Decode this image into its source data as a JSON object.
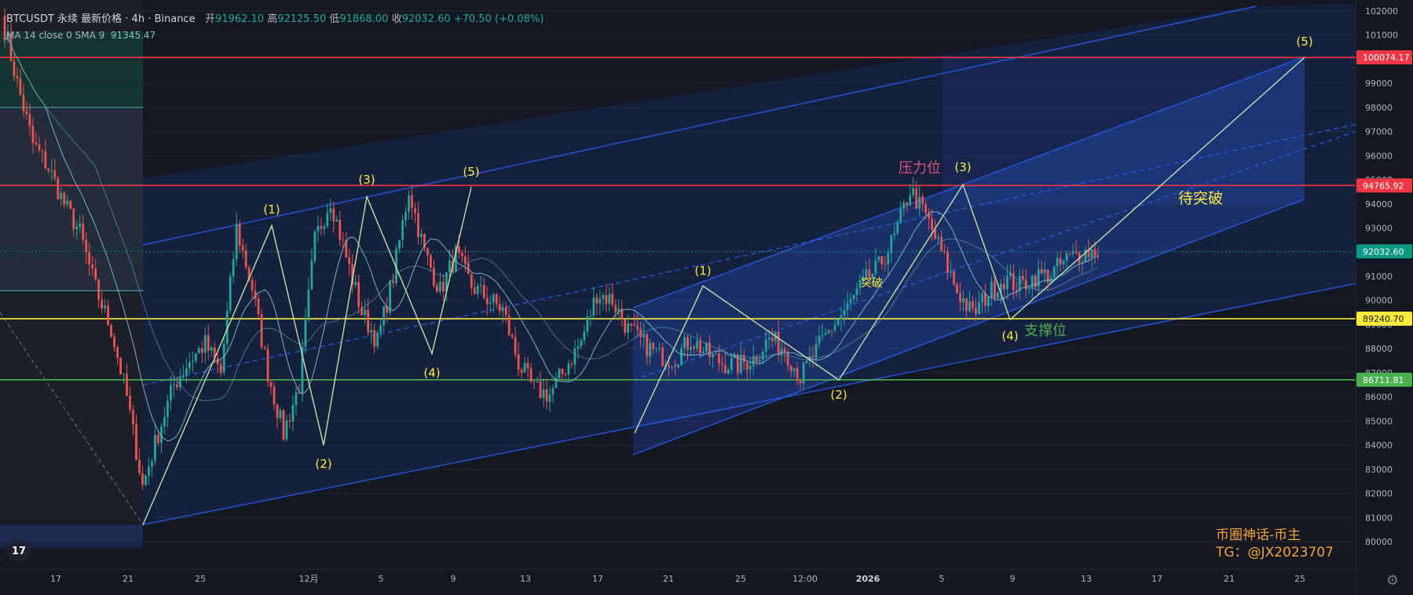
{
  "header": {
    "symbol": "BTCUSDT 永续 最新价格 · 4h · Binance",
    "open_label": "开",
    "open": "91962.10",
    "high_label": "高",
    "high": "92125.50",
    "low_label": "低",
    "low": "91868.00",
    "close_label": "收",
    "close": "92032.60",
    "change": "+70.50 (+0.08%)"
  },
  "indicator": {
    "label": "MA 14 close 0 SMA 9",
    "value": "91345.47"
  },
  "brand": {
    "line1": "币圈神话-币主",
    "line2": "TG：@JX2023707"
  },
  "tv_logo": "17",
  "colors": {
    "up": "#26a69a",
    "down": "#ef5350",
    "resistance": "#f23645",
    "support_yellow": "#ffeb3b",
    "support_green": "#4caf50",
    "channel": "#2962ff",
    "wave": "#c5e1a5",
    "ma": "#7cb6c8"
  },
  "chart_data": {
    "type": "candlestick",
    "timeframe": "4h",
    "ylim": [
      79200,
      102300
    ],
    "y_ticks": [
      80000,
      81000,
      82000,
      83000,
      84000,
      85000,
      86000,
      87000,
      88000,
      89000,
      90000,
      91000,
      92000,
      93000,
      94000,
      95000,
      96000,
      97000,
      98000,
      99000,
      100000,
      101000,
      102000
    ],
    "x_ticks": [
      "17",
      "21",
      "25",
      "12月",
      "5",
      "9",
      "13",
      "17",
      "21",
      "25",
      "12:00",
      "2026",
      "5",
      "9",
      "13",
      "17",
      "21",
      "25"
    ],
    "price_levels": [
      {
        "value": 100074.17,
        "label": "100074.17",
        "color": "#f23645"
      },
      {
        "value": 94765.92,
        "label": "94765.92",
        "color": "#f23645"
      },
      {
        "value": 92032.6,
        "label": "92032.60",
        "color": "#089981"
      },
      {
        "value": 89240.7,
        "label": "89240.70",
        "color": "#ffeb3b"
      },
      {
        "value": 86711.81,
        "label": "86711.81",
        "color": "#4caf50"
      }
    ],
    "price_path": [
      [
        "17",
        101800
      ],
      [
        "17",
        99000
      ],
      [
        "17",
        96500
      ],
      [
        "17",
        95500
      ],
      [
        "17",
        94000
      ],
      [
        "21",
        92800
      ],
      [
        "21",
        90500
      ],
      [
        "21",
        88800
      ],
      [
        "21",
        86000
      ],
      [
        "21",
        82300
      ],
      [
        "25",
        84500
      ],
      [
        "25",
        86500
      ],
      [
        "25",
        87500
      ],
      [
        "25",
        88200
      ],
      [
        "25",
        87000
      ],
      [
        "12月",
        93000
      ],
      [
        "12月",
        90500
      ],
      [
        "12月",
        87000
      ],
      [
        "12月",
        84500
      ],
      [
        "12月",
        86500
      ],
      [
        "5",
        92500
      ],
      [
        "5",
        94200
      ],
      [
        "5",
        91800
      ],
      [
        "5",
        89500
      ],
      [
        "5",
        88300
      ],
      [
        "9",
        91000
      ],
      [
        "9",
        94600
      ],
      [
        "9",
        92000
      ],
      [
        "9",
        90400
      ],
      [
        "9",
        91900
      ],
      [
        "13",
        90600
      ],
      [
        "13",
        90100
      ],
      [
        "13",
        89600
      ],
      [
        "13",
        87400
      ],
      [
        "13",
        86300
      ],
      [
        "17",
        86100
      ],
      [
        "17",
        87200
      ],
      [
        "17",
        88300
      ],
      [
        "17",
        90300
      ],
      [
        "17",
        90000
      ],
      [
        "21",
        88800
      ],
      [
        "21",
        88200
      ],
      [
        "21",
        87700
      ],
      [
        "21",
        87600
      ],
      [
        "21",
        88400
      ],
      [
        "25",
        87800
      ],
      [
        "25",
        87400
      ],
      [
        "25",
        87300
      ],
      [
        "25",
        87600
      ],
      [
        "25",
        88400
      ],
      [
        "12:00",
        88000
      ],
      [
        "12:00",
        86800
      ],
      [
        "12:00",
        87900
      ],
      [
        "12:00",
        88900
      ],
      [
        "12:00",
        89700
      ],
      [
        "2026",
        90700
      ],
      [
        "2026",
        91400
      ],
      [
        "2026",
        92600
      ],
      [
        "2026",
        94600
      ],
      [
        "2026",
        93500
      ],
      [
        "5",
        92000
      ],
      [
        "5",
        90400
      ],
      [
        "5",
        89400
      ],
      [
        "5",
        90300
      ],
      [
        "5",
        90900
      ],
      [
        "9",
        90600
      ],
      [
        "9",
        91000
      ],
      [
        "9",
        91100
      ],
      [
        "9",
        91700
      ],
      [
        "9",
        92000
      ],
      [
        "13",
        92100
      ]
    ],
    "elliott_waves": [
      {
        "label": "(1)",
        "price": 93100
      },
      {
        "label": "(2)",
        "price": 84000
      },
      {
        "label": "(3)",
        "price": 94300
      },
      {
        "label": "(4)",
        "price": 87800
      },
      {
        "label": "(5)",
        "price": 94700
      },
      {
        "label": "(1)",
        "price": 90600
      },
      {
        "label": "(2)",
        "price": 86700
      },
      {
        "label": "(3)",
        "price": 94800
      },
      {
        "label": "(4)",
        "price": 89200
      },
      {
        "label": "(5)",
        "price": 100074
      }
    ],
    "annotations": {
      "resistance": "压力位",
      "support": "支撑位",
      "breakout": "突破",
      "pending_breakout": "待突破"
    }
  }
}
